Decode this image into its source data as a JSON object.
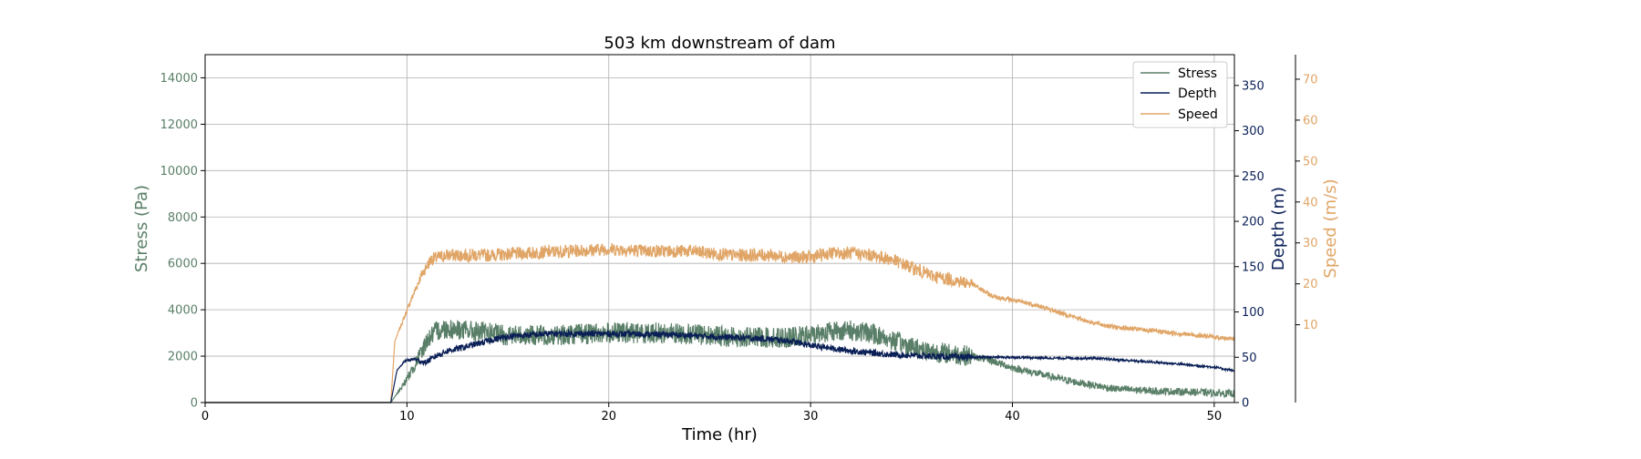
{
  "colors": {
    "stress": "#5a7f68",
    "depth": "#0a1f56",
    "speed": "#e0a566",
    "grid": "#b0b0b0",
    "axis": "#000000"
  },
  "chart_data": {
    "type": "line",
    "title": "503 km downstream of dam",
    "xlabel": "Time (hr)",
    "xlim": [
      0,
      51
    ],
    "x_ticks": [
      0,
      10,
      20,
      30,
      40,
      50
    ],
    "grid": true,
    "legend_position": "top-right",
    "axes": {
      "left": {
        "label": "Stress (Pa)",
        "ylim": [
          0,
          15000
        ],
        "ticks": [
          0,
          2000,
          4000,
          6000,
          8000,
          10000,
          12000,
          14000
        ]
      },
      "right": {
        "label": "Depth (m)",
        "ylim": [
          0,
          384
        ],
        "ticks": [
          0,
          50,
          100,
          150,
          200,
          250,
          300,
          350
        ]
      },
      "right2": {
        "label": "Speed (m/s)",
        "ylim": [
          -9,
          76
        ],
        "ticks": [
          10,
          20,
          30,
          40,
          50,
          60,
          70
        ]
      }
    },
    "series": [
      {
        "name": "Stress",
        "axis": "left",
        "noise": 450,
        "x": [
          0,
          9.2,
          9.6,
          10.0,
          10.5,
          11.0,
          11.5,
          12.0,
          13.0,
          14.0,
          15.0,
          17.0,
          20.0,
          23.0,
          25.0,
          27.0,
          29.0,
          30.0,
          31.0,
          32.0,
          33.0,
          34.0,
          35.0,
          36.0,
          37.0,
          38.0,
          39.0,
          40.0,
          41.0,
          42.0,
          43.0,
          44.0,
          45.0,
          47.0,
          49.0,
          51.0
        ],
        "y": [
          0,
          0,
          500,
          1000,
          1800,
          2700,
          3100,
          3200,
          3100,
          3000,
          2900,
          2900,
          3000,
          3000,
          2900,
          2800,
          2800,
          2900,
          3100,
          3100,
          3000,
          2700,
          2400,
          2200,
          2100,
          2000,
          1800,
          1500,
          1300,
          1100,
          900,
          750,
          600,
          500,
          450,
          380
        ]
      },
      {
        "name": "Depth",
        "axis": "right",
        "noise": 3.5,
        "x": [
          0,
          9.2,
          9.5,
          9.9,
          10.4,
          10.9,
          11.5,
          12.0,
          13.0,
          14.0,
          15.0,
          17.0,
          20.0,
          23.0,
          26.0,
          28.0,
          29.0,
          30.0,
          31.0,
          32.0,
          34.0,
          36.0,
          38.0,
          40.0,
          42.0,
          44.0,
          46.0,
          48.0,
          50.0,
          51.0
        ],
        "y": [
          0,
          0,
          35,
          46,
          48,
          44,
          52,
          57,
          62,
          68,
          73,
          76,
          76,
          75,
          72,
          70,
          68,
          63,
          60,
          57,
          53,
          51,
          50,
          50,
          49,
          49,
          46,
          43,
          39,
          35
        ]
      },
      {
        "name": "Speed",
        "axis": "right2",
        "noise": 1.6,
        "x": [
          0,
          9.2,
          9.4,
          9.8,
          10.2,
          10.7,
          11.2,
          12.0,
          14.0,
          16.0,
          18.0,
          20.0,
          22.0,
          24.0,
          26.0,
          28.0,
          29.0,
          30.0,
          31.0,
          32.0,
          33.0,
          34.0,
          35.0,
          36.0,
          37.0,
          38.0,
          39.0,
          40.0,
          41.0,
          42.0,
          43.0,
          44.0,
          45.0,
          46.0,
          47.0,
          48.0,
          49.0,
          50.0,
          51.0
        ],
        "y": [
          -9,
          -9,
          6,
          11,
          16,
          22,
          26,
          27,
          27,
          27.5,
          28,
          28.5,
          28,
          28,
          27,
          27,
          26.5,
          26.5,
          27.5,
          27.5,
          27,
          26,
          24,
          22,
          21,
          20,
          17,
          16,
          15,
          13.5,
          12,
          10.5,
          9.5,
          9,
          8.5,
          8,
          7.5,
          7,
          6.5
        ]
      }
    ]
  }
}
